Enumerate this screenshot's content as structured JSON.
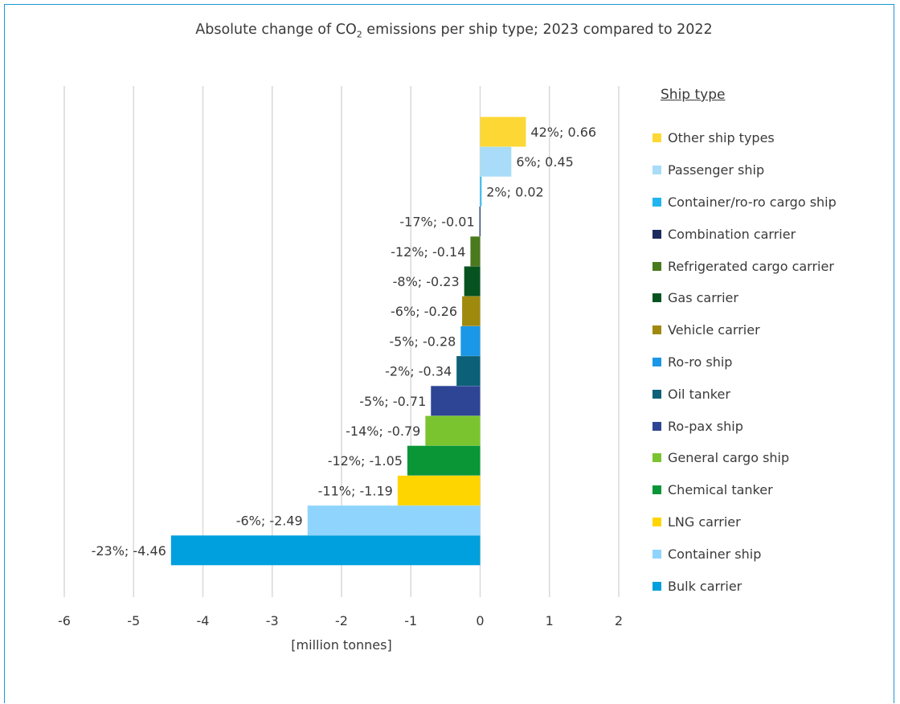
{
  "chart_data": {
    "type": "bar",
    "orientation": "horizontal",
    "title_pre": "Absolute change of CO",
    "title_sub": "2",
    "title_post": " emissions per ship type; 2023 compared to 2022",
    "xlabel": "[million tonnes]",
    "xlim": [
      -6,
      2
    ],
    "xticks": [
      "-6",
      "-5",
      "-4",
      "-3",
      "-2",
      "-1",
      "0",
      "1",
      "2"
    ],
    "grid": "vertical",
    "legend_title": "Ship type",
    "legend_position": "right",
    "categories": [
      {
        "name": "Other ship types",
        "value": 0.66,
        "label": "42%; 0.66",
        "color": "#fdd835"
      },
      {
        "name": "Passenger ship",
        "value": 0.45,
        "label": "6%; 0.45",
        "color": "#a8dcf8"
      },
      {
        "name": "Container/ro-ro cargo ship",
        "value": 0.02,
        "label": "2%; 0.02",
        "color": "#1fb6ef"
      },
      {
        "name": "Combination carrier",
        "value": -0.01,
        "label": "-17%; -0.01",
        "color": "#1c2a5e"
      },
      {
        "name": "Refrigerated cargo carrier",
        "value": -0.14,
        "label": "-12%; -0.14",
        "color": "#4a7a1e"
      },
      {
        "name": "Gas carrier",
        "value": -0.23,
        "label": "-8%; -0.23",
        "color": "#07531f"
      },
      {
        "name": "Vehicle carrier",
        "value": -0.26,
        "label": "-6%; -0.26",
        "color": "#a08a0e"
      },
      {
        "name": "Ro-ro ship",
        "value": -0.28,
        "label": "-5%; -0.28",
        "color": "#1a97e6"
      },
      {
        "name": "Oil tanker",
        "value": -0.34,
        "label": "-2%; -0.34",
        "color": "#0c6078"
      },
      {
        "name": "Ro-pax ship",
        "value": -0.71,
        "label": "-5%; -0.71",
        "color": "#2e4596"
      },
      {
        "name": "General cargo ship",
        "value": -0.79,
        "label": "-14%; -0.79",
        "color": "#7ac52f"
      },
      {
        "name": "Chemical tanker",
        "value": -1.05,
        "label": "-12%; -1.05",
        "color": "#0a9637"
      },
      {
        "name": "LNG carrier",
        "value": -1.19,
        "label": "-11%; -1.19",
        "color": "#ffd500"
      },
      {
        "name": "Container ship",
        "value": -2.49,
        "label": "-6%; -2.49",
        "color": "#8fd4fd"
      },
      {
        "name": "Bulk carrier",
        "value": -4.46,
        "label": "-23%; -4.46",
        "color": "#009fdd"
      }
    ]
  }
}
